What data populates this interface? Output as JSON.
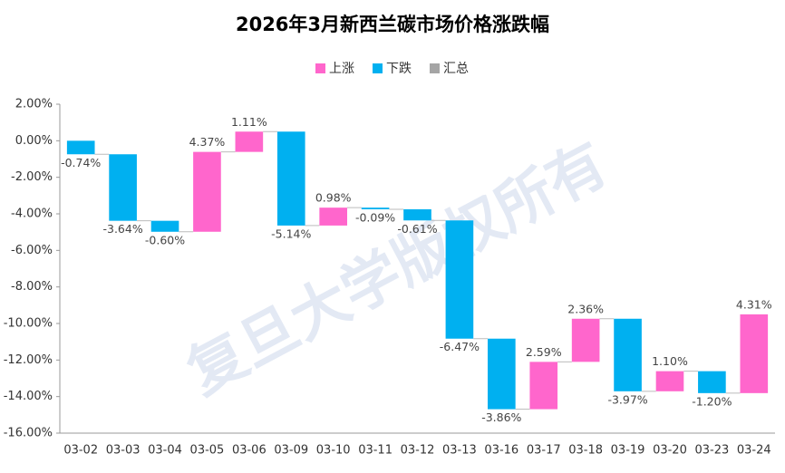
{
  "chart_data": {
    "type": "waterfall",
    "title": "2026年3月新西兰碳市场价格涨跌幅",
    "watermark": "复旦大学版权所有",
    "categories": [
      "03-02",
      "03-03",
      "03-04",
      "03-05",
      "03-06",
      "03-09",
      "03-10",
      "03-11",
      "03-12",
      "03-13",
      "03-16",
      "03-17",
      "03-18",
      "03-19",
      "03-20",
      "03-23",
      "03-24"
    ],
    "values": [
      -0.74,
      -3.64,
      -0.6,
      4.37,
      1.11,
      -5.14,
      0.98,
      -0.09,
      -0.61,
      -6.47,
      -3.86,
      2.59,
      2.36,
      -3.97,
      1.1,
      -1.2,
      4.31
    ],
    "value_labels": [
      "-0.74%",
      "-3.64%",
      "-0.60%",
      "4.37%",
      "1.11%",
      "-5.14%",
      "0.98%",
      "-0.09%",
      "-0.61%",
      "-6.47%",
      "-3.86%",
      "2.59%",
      "2.36%",
      "-3.97%",
      "1.10%",
      "-1.20%",
      "4.31%"
    ],
    "legend": [
      {
        "name": "上涨",
        "color": "#ff66cc"
      },
      {
        "name": "下跌",
        "color": "#00b0f0"
      },
      {
        "name": "汇总",
        "color": "#a5a5a5"
      }
    ],
    "ylim": [
      -16,
      2
    ],
    "yticks": [
      {
        "value": 2,
        "label": "2.00%"
      },
      {
        "value": 0,
        "label": "0.00%"
      },
      {
        "value": -2,
        "label": "-2.00%"
      },
      {
        "value": -4,
        "label": "-4.00%"
      },
      {
        "value": -6,
        "label": "-6.00%"
      },
      {
        "value": -8,
        "label": "-8.00%"
      },
      {
        "value": -10,
        "label": "-10.00%"
      },
      {
        "value": -12,
        "label": "-12.00%"
      },
      {
        "value": -14,
        "label": "-14.00%"
      },
      {
        "value": -16,
        "label": "-16.00%"
      }
    ]
  }
}
